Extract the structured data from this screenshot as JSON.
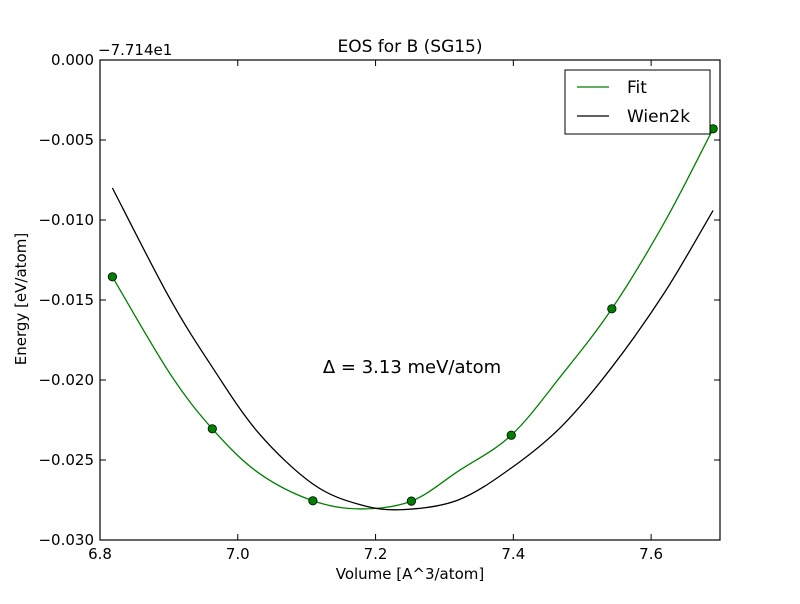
{
  "chart_data": {
    "type": "line",
    "title": "EOS for B (SG15)",
    "xlabel": "Volume [A^3/atom]",
    "ylabel": "Energy [eV/atom]",
    "offset_label": "−7.714e1",
    "annotation": "Δ = 3.13 meV/atom",
    "xlim": [
      6.8,
      7.7
    ],
    "ylim": [
      -0.03,
      0.0
    ],
    "x_ticks": [
      {
        "value": 6.8,
        "label": "6.8"
      },
      {
        "value": 7.0,
        "label": "7.0"
      },
      {
        "value": 7.2,
        "label": "7.2"
      },
      {
        "value": 7.4,
        "label": "7.4"
      },
      {
        "value": 7.6,
        "label": "7.6"
      }
    ],
    "y_ticks": [
      {
        "value": 0.0,
        "label": "0.000"
      },
      {
        "value": -0.005,
        "label": "−0.005"
      },
      {
        "value": -0.01,
        "label": "−0.010"
      },
      {
        "value": -0.015,
        "label": "−0.015"
      },
      {
        "value": -0.02,
        "label": "−0.020"
      },
      {
        "value": -0.025,
        "label": "−0.025"
      },
      {
        "value": -0.03,
        "label": "−0.030"
      }
    ],
    "legend_position": "top-right",
    "series": [
      {
        "name": "Fit",
        "color": "#008000",
        "style": "line",
        "x": [
          6.818,
          6.9,
          6.963,
          7.03,
          7.109,
          7.178,
          7.252,
          7.32,
          7.397,
          7.47,
          7.543,
          7.62,
          7.69
        ],
        "y": [
          -0.01355,
          -0.0195,
          -0.02305,
          -0.0258,
          -0.02755,
          -0.02806,
          -0.02757,
          -0.0257,
          -0.02345,
          -0.0197,
          -0.01555,
          -0.0101,
          -0.0043
        ]
      },
      {
        "name": "Wien2k",
        "color": "#000000",
        "style": "line",
        "x": [
          6.818,
          6.9,
          6.963,
          7.03,
          7.109,
          7.178,
          7.24,
          7.32,
          7.397,
          7.47,
          7.543,
          7.62,
          7.69
        ],
        "y": [
          -0.008,
          -0.0148,
          -0.0192,
          -0.0233,
          -0.0265,
          -0.0278,
          -0.0281,
          -0.0275,
          -0.0255,
          -0.0229,
          -0.0192,
          -0.0145,
          -0.0094
        ]
      }
    ],
    "points": {
      "color": "#008000",
      "x": [
        6.818,
        6.963,
        7.109,
        7.252,
        7.397,
        7.543,
        7.69
      ],
      "y": [
        -0.01355,
        -0.02305,
        -0.02755,
        -0.02757,
        -0.02345,
        -0.01555,
        -0.0043
      ]
    }
  }
}
